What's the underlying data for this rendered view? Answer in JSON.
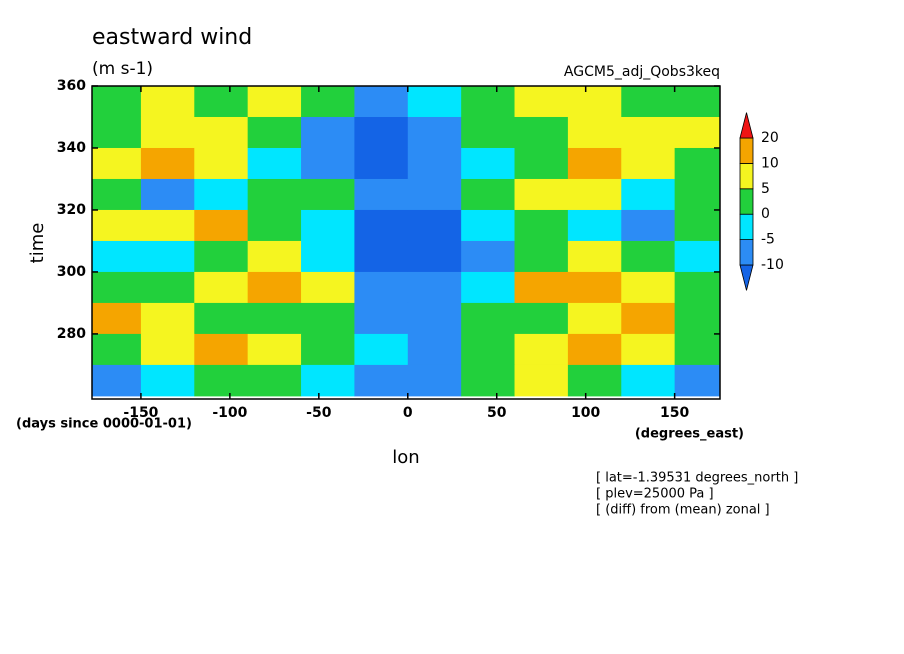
{
  "chart_data": {
    "type": "contour",
    "title": "eastward wind",
    "subtitle": "(m s-1)",
    "run_label": "AGCM5_adj_Qobs3keq",
    "xlabel": "lon",
    "ylabel": "time",
    "x_units": "(degrees_east)",
    "y_units": "(days since 0000-01-01)",
    "notes": [
      "[ lat=-1.39531 degrees_north ]",
      "[ plev=25000 Pa ]",
      "[ (diff) from (mean) zonal ]"
    ],
    "x": [
      -165,
      -135,
      -105,
      -75,
      -45,
      -15,
      15,
      45,
      75,
      105,
      135,
      165
    ],
    "y": [
      355,
      345,
      335,
      325,
      315,
      305,
      295,
      285,
      275,
      265
    ],
    "values": [
      [
        2,
        6,
        4,
        8,
        2,
        -6,
        -4,
        2,
        6,
        8,
        4,
        2
      ],
      [
        4,
        8,
        6,
        2,
        -6,
        -12,
        -8,
        2,
        4,
        6,
        8,
        6
      ],
      [
        8,
        10,
        6,
        -4,
        -10,
        -14,
        -10,
        -2,
        4,
        10,
        6,
        2
      ],
      [
        2,
        -6,
        -2,
        4,
        0,
        -10,
        -8,
        0,
        8,
        6,
        -2,
        4
      ],
      [
        6,
        8,
        10,
        4,
        -4,
        -12,
        -12,
        -4,
        2,
        -2,
        -6,
        2
      ],
      [
        -4,
        -2,
        2,
        6,
        -2,
        -14,
        -14,
        -6,
        4,
        8,
        2,
        -4
      ],
      [
        4,
        2,
        8,
        14,
        6,
        -8,
        -10,
        -2,
        12,
        10,
        6,
        2
      ],
      [
        10,
        6,
        2,
        4,
        0,
        -6,
        -8,
        2,
        4,
        8,
        10,
        2
      ],
      [
        2,
        8,
        10,
        6,
        2,
        -4,
        -6,
        4,
        8,
        16,
        8,
        4
      ],
      [
        -6,
        -4,
        2,
        4,
        -2,
        -8,
        -6,
        0,
        6,
        4,
        -2,
        -6
      ]
    ],
    "levels": [
      -10,
      -5,
      0,
      5,
      10,
      20
    ],
    "colors": [
      "#1464e6",
      "#2c8cf5",
      "#00e6ff",
      "#22d03c",
      "#f5f520",
      "#f5a500",
      "#f01414"
    ],
    "xlim": [
      -177.5,
      175.5
    ],
    "ylim": [
      259,
      360
    ],
    "xticks": [
      -150,
      -100,
      -50,
      0,
      50,
      100,
      150
    ],
    "yticks": [
      280,
      300,
      320,
      340,
      360
    ]
  }
}
